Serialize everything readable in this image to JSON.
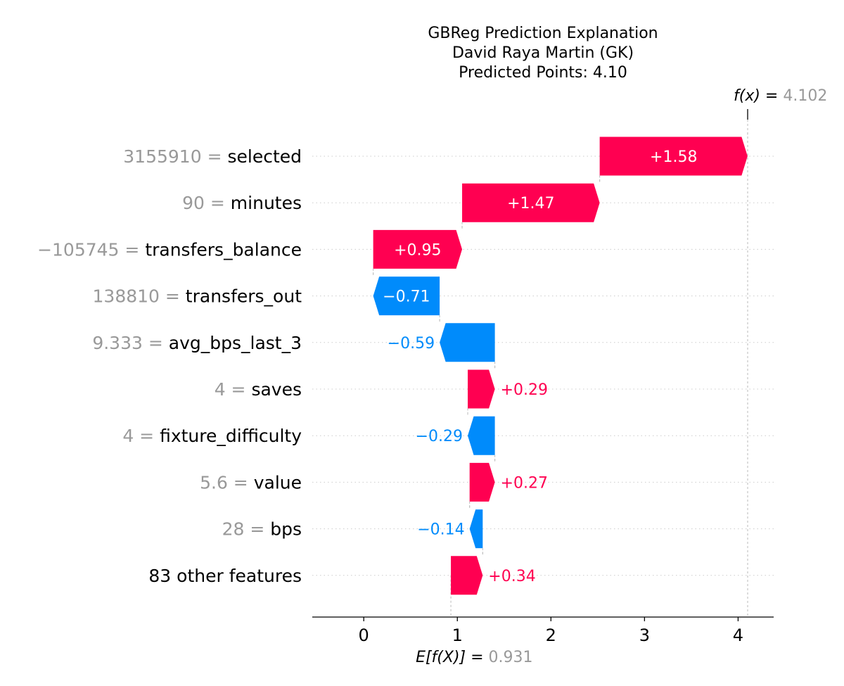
{
  "chart_data": {
    "type": "waterfall",
    "title_lines": [
      "GBReg Prediction Explanation",
      "David Raya Martin (GK)",
      "Predicted Points: 4.10"
    ],
    "base_value": 0.931,
    "base_value_label": "0.931",
    "output_value": 4.102,
    "output_value_label": "4.102",
    "fx_prefix": "f(x) =",
    "efx_prefix": "E[f(X)] =",
    "xlim": [
      -0.55,
      4.38
    ],
    "xticks": [
      0,
      1,
      2,
      3,
      4
    ],
    "xtick_labels": [
      "0",
      "1",
      "2",
      "3",
      "4"
    ],
    "colors": {
      "positive": "#ff0051",
      "negative": "#008bfb",
      "value_text": "#999999"
    },
    "features": [
      {
        "value": "3155910",
        "name": "selected",
        "contribution": 1.58,
        "label": "+1.58"
      },
      {
        "value": "90",
        "name": "minutes",
        "contribution": 1.47,
        "label": "+1.47"
      },
      {
        "value": "−105745",
        "name": "transfers_balance",
        "contribution": 0.95,
        "label": "+0.95"
      },
      {
        "value": "138810",
        "name": "transfers_out",
        "contribution": -0.71,
        "label": "−0.71"
      },
      {
        "value": "9.333",
        "name": "avg_bps_last_3",
        "contribution": -0.59,
        "label": "−0.59"
      },
      {
        "value": "4",
        "name": "saves",
        "contribution": 0.29,
        "label": "+0.29"
      },
      {
        "value": "4",
        "name": "fixture_difficulty",
        "contribution": -0.29,
        "label": "−0.29"
      },
      {
        "value": "5.6",
        "name": "value",
        "contribution": 0.27,
        "label": "+0.27"
      },
      {
        "value": "28",
        "name": "bps",
        "contribution": -0.14,
        "label": "−0.14"
      },
      {
        "value": "",
        "name": "83 other features",
        "contribution": 0.34,
        "label": "+0.34"
      }
    ]
  }
}
